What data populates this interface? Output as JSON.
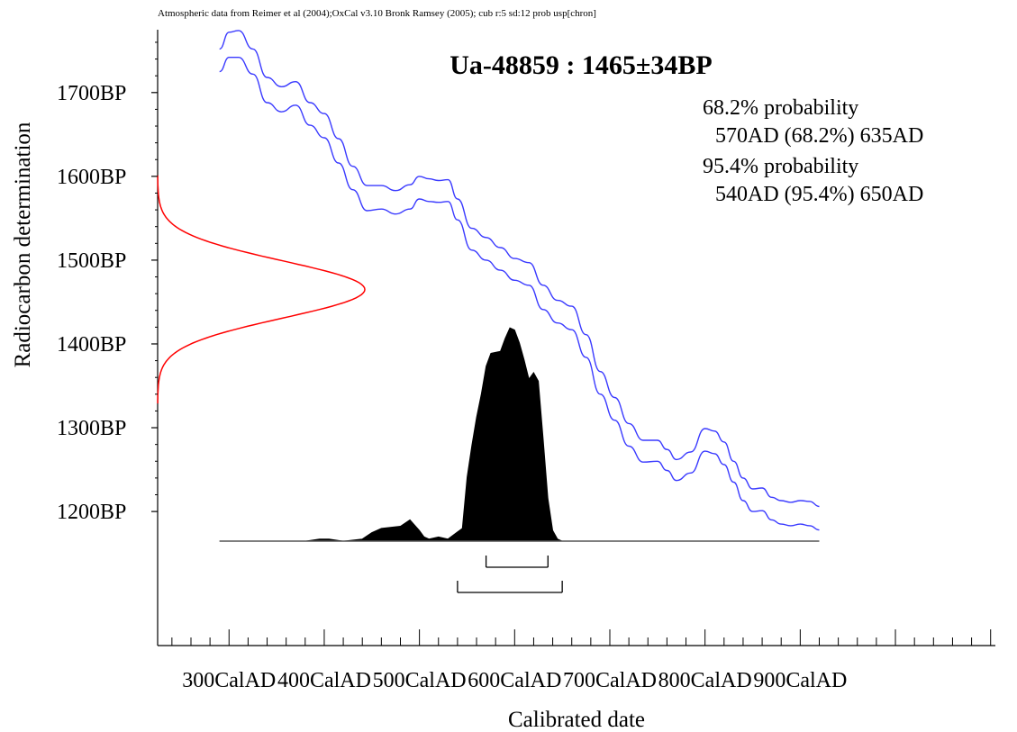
{
  "header": {
    "text": "Atmospheric data from Reimer et al (2004);OxCal v3.10 Bronk Ramsey (2005); cub r:5 sd:12 prob usp[chron]"
  },
  "colors": {
    "calibration_curve": "#3a3aff",
    "radiocarbon_gaussian": "#ff0000",
    "probability_fill": "#000000",
    "axes": "#000000",
    "baseline": "#555555"
  },
  "chart_data": {
    "type": "area",
    "title": "Ua-48859 : 1465±34BP",
    "xlabel": "Calibrated date",
    "ylabel": "Radiocarbon determination",
    "xlim": [
      225,
      1105
    ],
    "ylim": [
      1040,
      1775
    ],
    "x_ticks": [
      300,
      400,
      500,
      600,
      700,
      800,
      900
    ],
    "x_tick_labels": [
      "300CalAD",
      "400CalAD",
      "500CalAD",
      "600CalAD",
      "700CalAD",
      "800CalAD",
      "900CalAD"
    ],
    "y_ticks": [
      1700,
      1600,
      1500,
      1400,
      1300,
      1200
    ],
    "y_tick_labels": [
      "1700BP",
      "1600BP",
      "1500BP",
      "1400BP",
      "1300BP",
      "1200BP"
    ],
    "measurement": {
      "mean_bp": 1465,
      "sigma_bp": 34
    },
    "probability_text": [
      "68.2% probability",
      "570AD (68.2%) 635AD",
      "95.4% probability",
      "540AD (95.4%) 650AD"
    ],
    "ranges": [
      {
        "level": "68.2%",
        "from": 570,
        "to": 635
      },
      {
        "level": "95.4%",
        "from": 540,
        "to": 650
      }
    ],
    "series": [
      {
        "kind": "calibration_upper",
        "x": [
          290,
          300,
          310,
          325,
          340,
          355,
          370,
          385,
          400,
          415,
          430,
          445,
          460,
          475,
          490,
          500,
          510,
          520,
          530,
          540,
          555,
          570,
          585,
          600,
          615,
          630,
          645,
          660,
          675,
          690,
          705,
          720,
          735,
          750,
          760,
          770,
          785,
          800,
          810,
          820,
          830,
          840,
          850,
          860,
          870,
          880,
          890,
          900,
          910,
          920
        ],
        "y": [
          1752,
          1772,
          1774,
          1752,
          1718,
          1707,
          1713,
          1688,
          1675,
          1645,
          1612,
          1589,
          1589,
          1583,
          1590,
          1600,
          1597,
          1595,
          1596,
          1573,
          1538,
          1527,
          1515,
          1502,
          1497,
          1470,
          1452,
          1445,
          1411,
          1367,
          1336,
          1305,
          1285,
          1285,
          1274,
          1262,
          1271,
          1299,
          1296,
          1283,
          1260,
          1240,
          1227,
          1228,
          1217,
          1213,
          1211,
          1213,
          1212,
          1206
        ]
      },
      {
        "kind": "calibration_lower",
        "x": [
          290,
          300,
          310,
          325,
          340,
          355,
          370,
          385,
          400,
          415,
          430,
          445,
          460,
          475,
          490,
          500,
          510,
          520,
          530,
          540,
          555,
          570,
          585,
          600,
          615,
          630,
          645,
          660,
          675,
          690,
          705,
          720,
          735,
          750,
          760,
          770,
          785,
          800,
          810,
          820,
          830,
          840,
          850,
          860,
          870,
          880,
          890,
          900,
          910,
          920
        ],
        "y": [
          1725,
          1742,
          1742,
          1722,
          1688,
          1677,
          1685,
          1661,
          1646,
          1616,
          1584,
          1559,
          1561,
          1555,
          1561,
          1573,
          1570,
          1569,
          1570,
          1548,
          1512,
          1500,
          1488,
          1476,
          1470,
          1441,
          1425,
          1417,
          1384,
          1340,
          1309,
          1278,
          1259,
          1260,
          1249,
          1237,
          1246,
          1272,
          1269,
          1256,
          1235,
          1213,
          1200,
          1201,
          1190,
          1185,
          1183,
          1185,
          1183,
          1178
        ]
      },
      {
        "kind": "calendar_probability",
        "x": [
          290,
          380,
          395,
          405,
          420,
          440,
          450,
          460,
          480,
          490,
          500,
          505,
          510,
          520,
          530,
          545,
          550,
          555,
          560,
          565,
          570,
          575,
          585,
          590,
          595,
          600,
          605,
          610,
          615,
          620,
          625,
          630,
          635,
          640,
          645,
          650,
          655,
          660,
          670,
          680
        ],
        "y": [
          0,
          0,
          0.01,
          0.01,
          0,
          0.01,
          0.04,
          0.06,
          0.07,
          0.1,
          0.05,
          0.02,
          0.01,
          0.02,
          0.01,
          0.06,
          0.3,
          0.45,
          0.58,
          0.69,
          0.82,
          0.88,
          0.89,
          0.95,
          1.0,
          0.99,
          0.93,
          0.85,
          0.76,
          0.79,
          0.75,
          0.48,
          0.2,
          0.05,
          0.01,
          0,
          0,
          0,
          0,
          0
        ]
      }
    ],
    "grid": false,
    "legend": "none"
  }
}
